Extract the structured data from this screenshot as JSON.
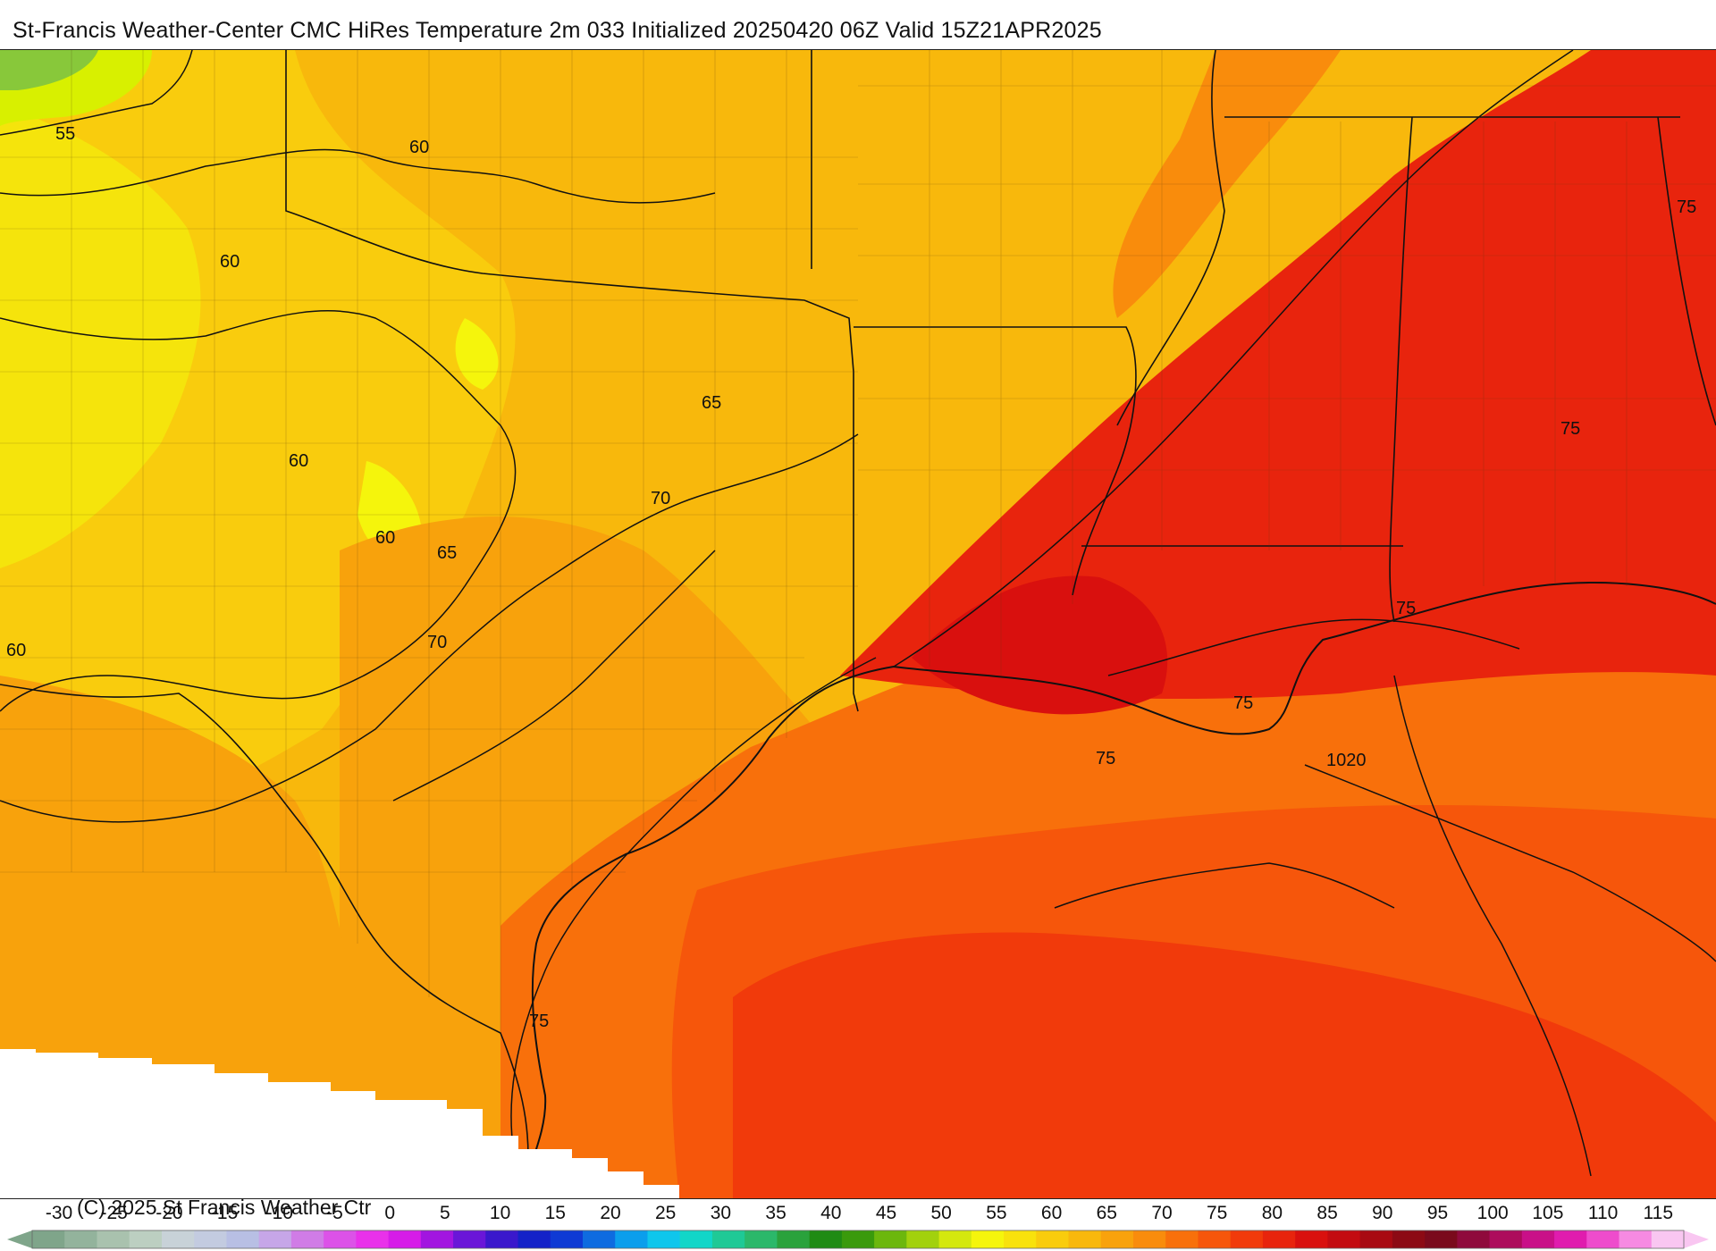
{
  "title": "St-Francis Weather-Center CMC HiRes Temperature 2m  033 Initialized 20250420 06Z Valid 15Z21APR2025",
  "copyright": "(C) 2025 St Francis Weather Ctr",
  "map": {
    "contour_labels": [
      "55",
      "60",
      "60",
      "60",
      "60",
      "60",
      "65",
      "65",
      "70",
      "70",
      "75",
      "75",
      "75",
      "75",
      "75",
      "75",
      "1020"
    ]
  },
  "legend": {
    "ticks": [
      "-30",
      "-25",
      "-20",
      "-15",
      "-10",
      "-5",
      "0",
      "5",
      "10",
      "15",
      "20",
      "25",
      "30",
      "35",
      "40",
      "45",
      "50",
      "55",
      "60",
      "65",
      "70",
      "75",
      "80",
      "85",
      "90",
      "95",
      "100",
      "105",
      "110",
      "115"
    ],
    "colors": [
      "#7fa58a",
      "#93b39c",
      "#a9c2ae",
      "#bccfc1",
      "#c8d2d8",
      "#c3cbe0",
      "#b8bfe4",
      "#c6a6e8",
      "#d07ce6",
      "#dc52e8",
      "#e931ea",
      "#d61ce8",
      "#a215e0",
      "#6a16d8",
      "#3a18cc",
      "#1422c8",
      "#0f3ad4",
      "#0e6be0",
      "#0b9eec",
      "#0fc6ec",
      "#12d6c8",
      "#1fc996",
      "#2bb86a",
      "#2aa23c",
      "#1f8b14",
      "#3a9a0c",
      "#6cb70d",
      "#a2d10d",
      "#d4e80e",
      "#f5f50c",
      "#f8e20c",
      "#f9cc0d",
      "#f8b80c",
      "#f8a20c",
      "#f98c0c",
      "#f8700b",
      "#f6560b",
      "#f13a0b",
      "#e8240d",
      "#d9100e",
      "#c30b10",
      "#a80a12",
      "#8c0a14",
      "#7a0a1c",
      "#8f0a3c",
      "#ad0c5c",
      "#c91088",
      "#e01cae",
      "#ee4ccc",
      "#f68ae2",
      "#f9c6f1"
    ]
  },
  "colors": {
    "cold_yellow_green": "#d8f000",
    "yellow": "#f8e20c",
    "orange": "#f8a20c",
    "red_orange": "#f8700b",
    "red": "#e8240d",
    "deep_red": "#d9100e"
  }
}
